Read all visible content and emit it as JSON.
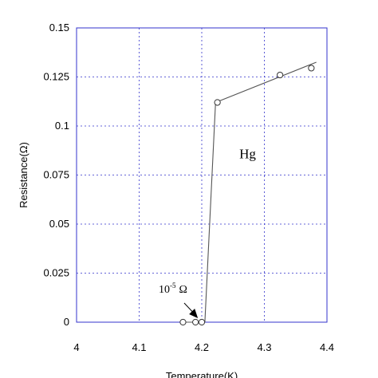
{
  "chart_data": {
    "type": "scatter",
    "title": "",
    "xlabel": "Temperature(K)",
    "ylabel": "Resistance(Ω)",
    "xlim": [
      4.0,
      4.4
    ],
    "ylim": [
      0,
      0.15
    ],
    "x_ticks": [
      "4",
      "4.1",
      "4.2",
      "4.3",
      "4.4"
    ],
    "y_ticks": [
      "0",
      "0.025",
      "0.05",
      "0.075",
      "0.1",
      "0.125",
      "0.15"
    ],
    "grid": true,
    "points": [
      {
        "x": 4.17,
        "y": 0.0
      },
      {
        "x": 4.19,
        "y": 0.0
      },
      {
        "x": 4.2,
        "y": 0.0
      },
      {
        "x": 4.225,
        "y": 0.112
      },
      {
        "x": 4.325,
        "y": 0.126
      },
      {
        "x": 4.375,
        "y": 0.1295
      }
    ],
    "line": [
      {
        "x": 4.17,
        "y": 0.0
      },
      {
        "x": 4.205,
        "y": 0.0
      },
      {
        "x": 4.222,
        "y": 0.112
      },
      {
        "x": 4.383,
        "y": 0.1325
      }
    ],
    "annotations": {
      "material": "Hg",
      "resistance_base": "10",
      "resistance_exp": "-5",
      "resistance_unit": "Ω"
    },
    "colors": {
      "grid": "#3333cc",
      "frame": "#3333cc",
      "series": "#555555",
      "text": "#000000"
    }
  }
}
